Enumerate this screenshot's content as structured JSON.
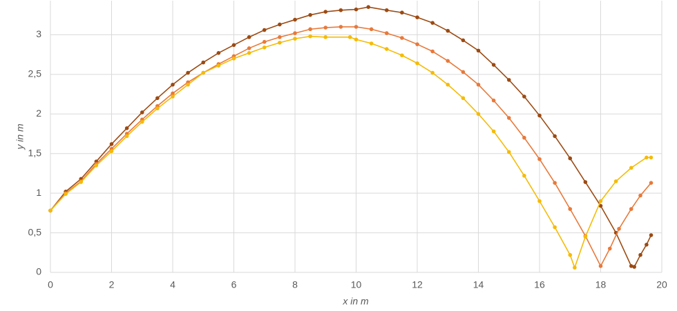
{
  "chart_data": {
    "type": "line",
    "x_label": "x in m",
    "y_label": "y in m",
    "xlim": [
      0,
      20
    ],
    "xticks": [
      0,
      2,
      4,
      6,
      8,
      10,
      12,
      14,
      16,
      18,
      20
    ],
    "ylim": [
      0,
      3.43
    ],
    "yticks": [
      0,
      {
        "value": 0.5,
        "label": "0,5"
      },
      1,
      {
        "value": 1.5,
        "label": "1,5"
      },
      2,
      {
        "value": 2.5,
        "label": "2,5"
      },
      3
    ],
    "grid": true,
    "markers": true,
    "series": [
      {
        "color": "#9c4a12",
        "x": [
          0,
          0.5,
          1,
          1.5,
          2,
          2.5,
          3,
          3.5,
          4,
          4.5,
          5,
          5.5,
          6,
          6.5,
          7,
          7.5,
          8,
          8.5,
          9,
          9.5,
          10,
          10.4,
          11,
          11.5,
          12,
          12.5,
          13,
          13.5,
          14,
          14.5,
          15,
          15.5,
          16,
          16.5,
          17,
          17.5,
          18,
          18.5,
          19,
          19.1,
          19.3,
          19.5,
          19.65
        ],
        "values": [
          0.78,
          1.02,
          1.18,
          1.4,
          1.62,
          1.82,
          2.02,
          2.2,
          2.37,
          2.52,
          2.65,
          2.77,
          2.87,
          2.97,
          3.06,
          3.13,
          3.19,
          3.25,
          3.29,
          3.31,
          3.32,
          3.35,
          3.31,
          3.28,
          3.22,
          3.15,
          3.05,
          2.93,
          2.8,
          2.62,
          2.43,
          2.22,
          1.98,
          1.72,
          1.44,
          1.14,
          0.84,
          0.5,
          0.08,
          0.07,
          0.22,
          0.35,
          0.47
        ]
      },
      {
        "color": "#e8793a",
        "x": [
          0,
          0.5,
          1,
          1.5,
          2,
          2.5,
          3,
          3.5,
          4,
          4.5,
          5,
          5.5,
          6,
          6.5,
          7,
          7.5,
          8,
          8.5,
          9,
          9.5,
          10,
          10.5,
          11,
          11.5,
          12,
          12.5,
          13,
          13.5,
          14,
          14.5,
          15,
          15.5,
          16,
          16.5,
          17,
          17.5,
          18,
          18.3,
          18.6,
          19,
          19.3,
          19.65
        ],
        "values": [
          0.78,
          1.0,
          1.15,
          1.37,
          1.56,
          1.75,
          1.93,
          2.1,
          2.26,
          2.4,
          2.52,
          2.63,
          2.73,
          2.83,
          2.91,
          2.97,
          3.02,
          3.07,
          3.09,
          3.1,
          3.1,
          3.07,
          3.02,
          2.96,
          2.88,
          2.79,
          2.67,
          2.53,
          2.37,
          2.17,
          1.95,
          1.7,
          1.43,
          1.13,
          0.8,
          0.46,
          0.08,
          0.3,
          0.55,
          0.8,
          0.97,
          1.13
        ]
      },
      {
        "color": "#f5bb05",
        "x": [
          0,
          0.5,
          1,
          1.5,
          2,
          2.5,
          3,
          3.5,
          4,
          4.5,
          5,
          5.5,
          6,
          6.5,
          7,
          7.5,
          8,
          8.5,
          9,
          9.8,
          10,
          10.5,
          11,
          11.5,
          12,
          12.5,
          13,
          13.5,
          14,
          14.5,
          15,
          15.5,
          16,
          16.5,
          17,
          17.15,
          17.5,
          18,
          18.5,
          19,
          19.5,
          19.65
        ],
        "values": [
          0.78,
          0.99,
          1.14,
          1.35,
          1.53,
          1.72,
          1.9,
          2.07,
          2.22,
          2.37,
          2.52,
          2.61,
          2.7,
          2.77,
          2.84,
          2.9,
          2.95,
          2.98,
          2.97,
          2.97,
          2.94,
          2.89,
          2.82,
          2.74,
          2.64,
          2.52,
          2.37,
          2.2,
          2.0,
          1.78,
          1.52,
          1.22,
          0.9,
          0.57,
          0.22,
          0.06,
          0.45,
          0.9,
          1.15,
          1.32,
          1.45,
          1.45
        ]
      }
    ]
  }
}
